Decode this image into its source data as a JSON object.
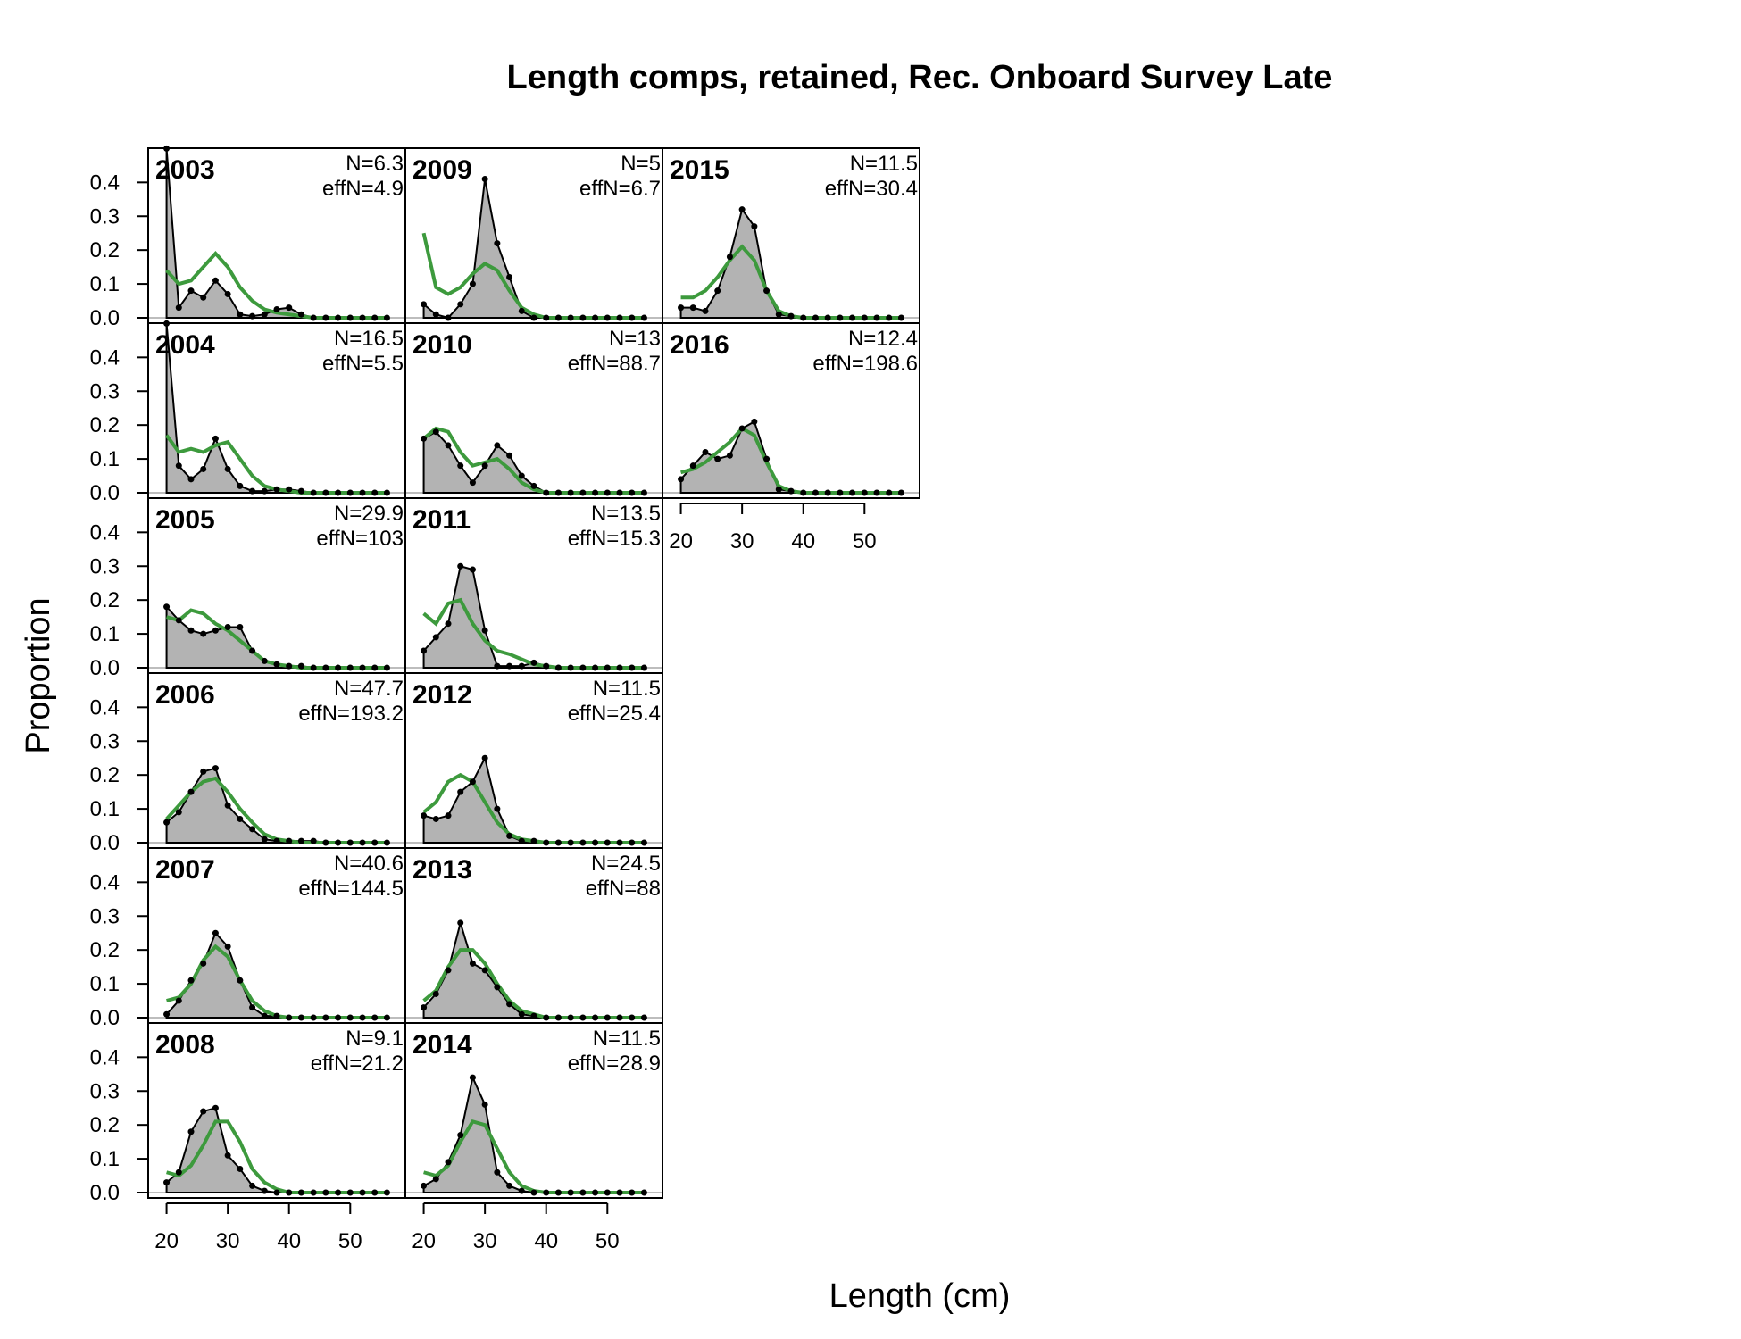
{
  "chart_data": {
    "type": "area",
    "title": "Length comps, retained, Rec. Onboard Survey Late",
    "xlabel": "Length (cm)",
    "ylabel": "Proportion",
    "xlim": [
      17,
      59
    ],
    "ylim": [
      0,
      0.48
    ],
    "xticks": [
      20,
      30,
      40,
      50
    ],
    "yticks": [
      0.0,
      0.1,
      0.2,
      0.3,
      0.4
    ],
    "grid": false,
    "legend": "none",
    "colors": {
      "observed_fill": "#b3b3b3",
      "observed_line": "#000000",
      "expected_line": "#3d9a3d"
    },
    "x": [
      20,
      22,
      24,
      26,
      28,
      30,
      32,
      34,
      36,
      38,
      40,
      42,
      44,
      46,
      48,
      50,
      52,
      54,
      56
    ],
    "panels": [
      {
        "year": "2003",
        "n_label": "N=6.3",
        "effn_label": "effN=4.9",
        "observed": [
          0.5,
          0.03,
          0.08,
          0.06,
          0.11,
          0.07,
          0.01,
          0.005,
          0.01,
          0.025,
          0.03,
          0.01,
          0,
          0,
          0,
          0,
          0,
          0,
          0
        ],
        "expected": [
          0.14,
          0.1,
          0.11,
          0.15,
          0.19,
          0.15,
          0.09,
          0.05,
          0.025,
          0.015,
          0.01,
          0.005,
          0,
          0,
          0,
          0,
          0,
          0,
          0
        ]
      },
      {
        "year": "2004",
        "n_label": "N=16.5",
        "effn_label": "effN=5.5",
        "observed": [
          0.5,
          0.08,
          0.04,
          0.07,
          0.16,
          0.07,
          0.02,
          0.005,
          0.005,
          0.01,
          0.01,
          0.005,
          0,
          0,
          0,
          0,
          0,
          0,
          0
        ],
        "expected": [
          0.17,
          0.12,
          0.13,
          0.12,
          0.14,
          0.15,
          0.1,
          0.05,
          0.02,
          0.01,
          0.005,
          0,
          0,
          0,
          0,
          0,
          0,
          0,
          0
        ]
      },
      {
        "year": "2005",
        "n_label": "N=29.9",
        "effn_label": "effN=103",
        "observed": [
          0.18,
          0.14,
          0.11,
          0.1,
          0.11,
          0.12,
          0.12,
          0.05,
          0.02,
          0.01,
          0.005,
          0.005,
          0,
          0,
          0,
          0,
          0,
          0,
          0
        ],
        "expected": [
          0.15,
          0.14,
          0.17,
          0.16,
          0.13,
          0.11,
          0.08,
          0.05,
          0.02,
          0.01,
          0.005,
          0,
          0,
          0,
          0,
          0,
          0,
          0,
          0
        ]
      },
      {
        "year": "2006",
        "n_label": "N=47.7",
        "effn_label": "effN=193.2",
        "observed": [
          0.06,
          0.09,
          0.15,
          0.21,
          0.22,
          0.11,
          0.07,
          0.04,
          0.01,
          0.005,
          0.005,
          0.005,
          0.005,
          0,
          0,
          0,
          0,
          0,
          0
        ],
        "expected": [
          0.07,
          0.11,
          0.15,
          0.18,
          0.19,
          0.15,
          0.1,
          0.06,
          0.025,
          0.01,
          0.005,
          0,
          0,
          0,
          0,
          0,
          0,
          0,
          0
        ]
      },
      {
        "year": "2007",
        "n_label": "N=40.6",
        "effn_label": "effN=144.5",
        "observed": [
          0.01,
          0.05,
          0.11,
          0.16,
          0.25,
          0.21,
          0.11,
          0.03,
          0.005,
          0.005,
          0,
          0,
          0,
          0,
          0,
          0,
          0,
          0,
          0
        ],
        "expected": [
          0.05,
          0.06,
          0.1,
          0.17,
          0.21,
          0.18,
          0.11,
          0.05,
          0.02,
          0.005,
          0,
          0,
          0,
          0,
          0,
          0,
          0,
          0,
          0
        ]
      },
      {
        "year": "2008",
        "n_label": "N=9.1",
        "effn_label": "effN=21.2",
        "observed": [
          0.03,
          0.06,
          0.18,
          0.24,
          0.25,
          0.11,
          0.07,
          0.02,
          0.005,
          0,
          0,
          0,
          0,
          0,
          0,
          0,
          0,
          0,
          0
        ],
        "expected": [
          0.06,
          0.05,
          0.08,
          0.14,
          0.21,
          0.21,
          0.15,
          0.07,
          0.03,
          0.01,
          0,
          0,
          0,
          0,
          0,
          0,
          0,
          0,
          0
        ]
      },
      {
        "year": "2009",
        "n_label": "N=5",
        "effn_label": "effN=6.7",
        "observed": [
          0.04,
          0.01,
          0,
          0.04,
          0.1,
          0.41,
          0.22,
          0.12,
          0.02,
          0,
          0,
          0,
          0,
          0,
          0,
          0,
          0,
          0,
          0
        ],
        "expected": [
          0.25,
          0.09,
          0.07,
          0.09,
          0.13,
          0.16,
          0.14,
          0.08,
          0.03,
          0.01,
          0,
          0,
          0,
          0,
          0,
          0,
          0,
          0,
          0
        ]
      },
      {
        "year": "2010",
        "n_label": "N=13",
        "effn_label": "effN=88.7",
        "observed": [
          0.16,
          0.18,
          0.14,
          0.08,
          0.03,
          0.08,
          0.14,
          0.11,
          0.05,
          0.02,
          0,
          0,
          0,
          0,
          0,
          0,
          0,
          0,
          0
        ],
        "expected": [
          0.16,
          0.19,
          0.18,
          0.12,
          0.08,
          0.09,
          0.1,
          0.07,
          0.03,
          0.01,
          0,
          0,
          0,
          0,
          0,
          0,
          0,
          0,
          0
        ]
      },
      {
        "year": "2011",
        "n_label": "N=13.5",
        "effn_label": "effN=15.3",
        "observed": [
          0.05,
          0.09,
          0.13,
          0.3,
          0.29,
          0.11,
          0.005,
          0.005,
          0.005,
          0.015,
          0.005,
          0,
          0,
          0,
          0,
          0,
          0,
          0,
          0
        ],
        "expected": [
          0.16,
          0.13,
          0.19,
          0.2,
          0.13,
          0.08,
          0.05,
          0.04,
          0.025,
          0.01,
          0.005,
          0,
          0,
          0,
          0,
          0,
          0,
          0,
          0
        ]
      },
      {
        "year": "2012",
        "n_label": "N=11.5",
        "effn_label": "effN=25.4",
        "observed": [
          0.08,
          0.07,
          0.08,
          0.15,
          0.18,
          0.25,
          0.1,
          0.02,
          0.005,
          0.005,
          0,
          0,
          0,
          0,
          0,
          0,
          0,
          0,
          0
        ],
        "expected": [
          0.09,
          0.12,
          0.18,
          0.2,
          0.18,
          0.12,
          0.06,
          0.025,
          0.01,
          0.005,
          0,
          0,
          0,
          0,
          0,
          0,
          0,
          0,
          0
        ]
      },
      {
        "year": "2013",
        "n_label": "N=24.5",
        "effn_label": "effN=88",
        "observed": [
          0.03,
          0.07,
          0.14,
          0.28,
          0.16,
          0.14,
          0.09,
          0.04,
          0.01,
          0.005,
          0,
          0,
          0,
          0,
          0,
          0,
          0,
          0,
          0
        ],
        "expected": [
          0.05,
          0.08,
          0.15,
          0.2,
          0.2,
          0.16,
          0.1,
          0.05,
          0.02,
          0.01,
          0,
          0,
          0,
          0,
          0,
          0,
          0,
          0,
          0
        ]
      },
      {
        "year": "2014",
        "n_label": "N=11.5",
        "effn_label": "effN=28.9",
        "observed": [
          0.02,
          0.04,
          0.09,
          0.17,
          0.34,
          0.26,
          0.06,
          0.02,
          0.005,
          0,
          0,
          0,
          0,
          0,
          0,
          0,
          0,
          0,
          0
        ],
        "expected": [
          0.06,
          0.05,
          0.08,
          0.15,
          0.21,
          0.2,
          0.13,
          0.06,
          0.02,
          0.005,
          0,
          0,
          0,
          0,
          0,
          0,
          0,
          0,
          0
        ]
      },
      {
        "year": "2015",
        "n_label": "N=11.5",
        "effn_label": "effN=30.4",
        "observed": [
          0.03,
          0.03,
          0.02,
          0.08,
          0.18,
          0.32,
          0.27,
          0.08,
          0.01,
          0.005,
          0,
          0,
          0,
          0,
          0,
          0,
          0,
          0,
          0
        ],
        "expected": [
          0.06,
          0.06,
          0.08,
          0.12,
          0.17,
          0.21,
          0.17,
          0.08,
          0.02,
          0.005,
          0,
          0,
          0,
          0,
          0,
          0,
          0,
          0,
          0
        ]
      },
      {
        "year": "2016",
        "n_label": "N=12.4",
        "effn_label": "effN=198.6",
        "observed": [
          0.04,
          0.08,
          0.12,
          0.1,
          0.11,
          0.19,
          0.21,
          0.1,
          0.01,
          0.005,
          0,
          0,
          0,
          0,
          0,
          0,
          0,
          0,
          0
        ],
        "expected": [
          0.06,
          0.07,
          0.09,
          0.12,
          0.15,
          0.19,
          0.17,
          0.09,
          0.02,
          0.005,
          0,
          0,
          0,
          0,
          0,
          0,
          0,
          0,
          0
        ]
      }
    ]
  }
}
